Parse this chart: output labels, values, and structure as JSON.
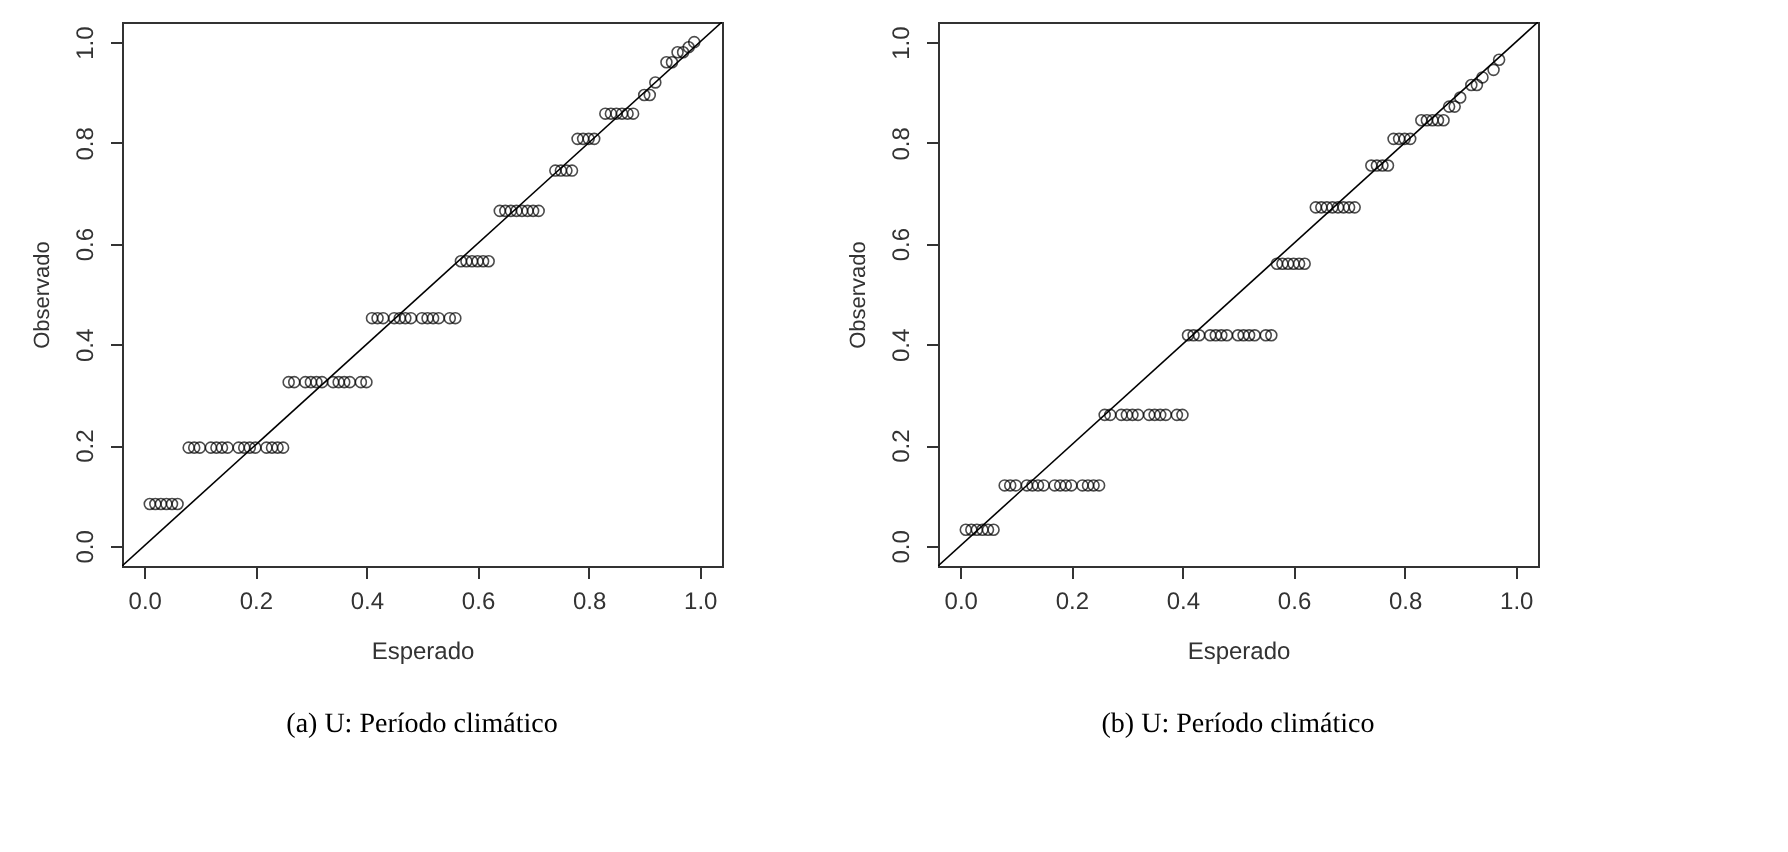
{
  "chart_data": [
    {
      "type": "scatter",
      "xlabel": "Esperado",
      "ylabel": "Observado",
      "annotations": [
        "(a) U: Período climático"
      ],
      "xlim": [
        -0.04,
        1.04
      ],
      "ylim": [
        -0.04,
        1.04
      ],
      "grid": false,
      "xticks": [
        {
          "value": 0,
          "label": "0.0"
        },
        {
          "value": 0.2,
          "label": "0.2"
        },
        {
          "value": 0.4,
          "label": "0.4"
        },
        {
          "value": 0.6,
          "label": "0.6"
        },
        {
          "value": 0.8,
          "label": "0.8"
        },
        {
          "value": 1,
          "label": "1.0"
        }
      ],
      "yticks": [
        {
          "value": 0,
          "label": "0.0"
        },
        {
          "value": 0.2,
          "label": "0.2"
        },
        {
          "value": 0.4,
          "label": "0.4"
        },
        {
          "value": 0.6,
          "label": "0.6"
        },
        {
          "value": 0.8,
          "label": "0.8"
        },
        {
          "value": 1,
          "label": "1.0"
        }
      ],
      "series": [
        {
          "marker": "circle",
          "color": "#000000",
          "x": [
            0.01,
            0.02,
            0.03,
            0.04,
            0.05,
            0.06,
            0.08,
            0.09,
            0.1,
            0.12,
            0.13,
            0.14,
            0.15,
            0.17,
            0.18,
            0.19,
            0.2,
            0.22,
            0.23,
            0.24,
            0.25,
            0.26,
            0.27,
            0.29,
            0.3,
            0.31,
            0.32,
            0.34,
            0.35,
            0.36,
            0.37,
            0.39,
            0.4,
            0.41,
            0.42,
            0.43,
            0.45,
            0.46,
            0.47,
            0.48,
            0.5,
            0.51,
            0.52,
            0.53,
            0.55,
            0.56,
            0.57,
            0.58,
            0.59,
            0.6,
            0.61,
            0.62,
            0.64,
            0.65,
            0.66,
            0.67,
            0.68,
            0.69,
            0.7,
            0.71,
            0.74,
            0.75,
            0.76,
            0.77,
            0.78,
            0.79,
            0.8,
            0.81,
            0.83,
            0.84,
            0.85,
            0.86,
            0.87,
            0.88,
            0.9,
            0.91,
            0.92,
            0.94,
            0.95,
            0.96,
            0.97,
            0.98,
            0.99
          ],
          "values": [
            0.083,
            0.083,
            0.083,
            0.083,
            0.083,
            0.083,
            0.195,
            0.195,
            0.195,
            0.195,
            0.195,
            0.195,
            0.195,
            0.195,
            0.195,
            0.195,
            0.195,
            0.195,
            0.195,
            0.195,
            0.195,
            0.325,
            0.325,
            0.325,
            0.325,
            0.325,
            0.325,
            0.325,
            0.325,
            0.325,
            0.325,
            0.325,
            0.325,
            0.452,
            0.452,
            0.452,
            0.452,
            0.452,
            0.452,
            0.452,
            0.452,
            0.452,
            0.452,
            0.452,
            0.452,
            0.452,
            0.565,
            0.565,
            0.565,
            0.565,
            0.565,
            0.565,
            0.665,
            0.665,
            0.665,
            0.665,
            0.665,
            0.665,
            0.665,
            0.665,
            0.745,
            0.745,
            0.745,
            0.745,
            0.808,
            0.808,
            0.808,
            0.808,
            0.858,
            0.858,
            0.858,
            0.858,
            0.858,
            0.858,
            0.895,
            0.895,
            0.92,
            0.96,
            0.96,
            0.98,
            0.98,
            0.99,
            1.0
          ]
        },
        {
          "type": "line",
          "color": "#000000",
          "x": [
            -0.04,
            1.04
          ],
          "values": [
            -0.04,
            1.04
          ]
        }
      ]
    },
    {
      "type": "scatter",
      "xlabel": "Esperado",
      "ylabel": "Observado",
      "annotations": [
        "(b) U: Período climático"
      ],
      "xlim": [
        -0.04,
        1.04
      ],
      "ylim": [
        -0.04,
        1.04
      ],
      "grid": false,
      "xticks": [
        {
          "value": 0,
          "label": "0.0"
        },
        {
          "value": 0.2,
          "label": "0.2"
        },
        {
          "value": 0.4,
          "label": "0.4"
        },
        {
          "value": 0.6,
          "label": "0.6"
        },
        {
          "value": 0.8,
          "label": "0.8"
        },
        {
          "value": 1,
          "label": "1.0"
        }
      ],
      "yticks": [
        {
          "value": 0,
          "label": "0.0"
        },
        {
          "value": 0.2,
          "label": "0.2"
        },
        {
          "value": 0.4,
          "label": "0.4"
        },
        {
          "value": 0.6,
          "label": "0.6"
        },
        {
          "value": 0.8,
          "label": "0.8"
        },
        {
          "value": 1,
          "label": "1.0"
        }
      ],
      "series": [
        {
          "marker": "circle",
          "color": "#000000",
          "x": [
            0.01,
            0.02,
            0.03,
            0.04,
            0.05,
            0.06,
            0.08,
            0.09,
            0.1,
            0.12,
            0.13,
            0.14,
            0.15,
            0.17,
            0.18,
            0.19,
            0.2,
            0.22,
            0.23,
            0.24,
            0.25,
            0.26,
            0.27,
            0.29,
            0.3,
            0.31,
            0.32,
            0.34,
            0.35,
            0.36,
            0.37,
            0.39,
            0.4,
            0.41,
            0.42,
            0.43,
            0.45,
            0.46,
            0.47,
            0.48,
            0.5,
            0.51,
            0.52,
            0.53,
            0.55,
            0.56,
            0.57,
            0.58,
            0.59,
            0.6,
            0.61,
            0.62,
            0.64,
            0.65,
            0.66,
            0.67,
            0.68,
            0.69,
            0.7,
            0.71,
            0.74,
            0.75,
            0.76,
            0.77,
            0.78,
            0.79,
            0.8,
            0.81,
            0.83,
            0.84,
            0.85,
            0.86,
            0.87,
            0.88,
            0.89,
            0.9,
            0.92,
            0.93,
            0.94,
            0.96,
            0.97
          ],
          "values": [
            0.032,
            0.032,
            0.032,
            0.032,
            0.032,
            0.032,
            0.12,
            0.12,
            0.12,
            0.12,
            0.12,
            0.12,
            0.12,
            0.12,
            0.12,
            0.12,
            0.12,
            0.12,
            0.12,
            0.12,
            0.12,
            0.26,
            0.26,
            0.26,
            0.26,
            0.26,
            0.26,
            0.26,
            0.26,
            0.26,
            0.26,
            0.26,
            0.26,
            0.418,
            0.418,
            0.418,
            0.418,
            0.418,
            0.418,
            0.418,
            0.418,
            0.418,
            0.418,
            0.418,
            0.418,
            0.418,
            0.56,
            0.56,
            0.56,
            0.56,
            0.56,
            0.56,
            0.672,
            0.672,
            0.672,
            0.672,
            0.672,
            0.672,
            0.672,
            0.672,
            0.755,
            0.755,
            0.755,
            0.755,
            0.808,
            0.808,
            0.808,
            0.808,
            0.845,
            0.845,
            0.845,
            0.845,
            0.845,
            0.872,
            0.872,
            0.89,
            0.915,
            0.915,
            0.93,
            0.945,
            0.965
          ]
        },
        {
          "type": "line",
          "color": "#000000",
          "x": [
            -0.04,
            1.04
          ],
          "values": [
            -0.04,
            1.04
          ]
        }
      ]
    }
  ]
}
